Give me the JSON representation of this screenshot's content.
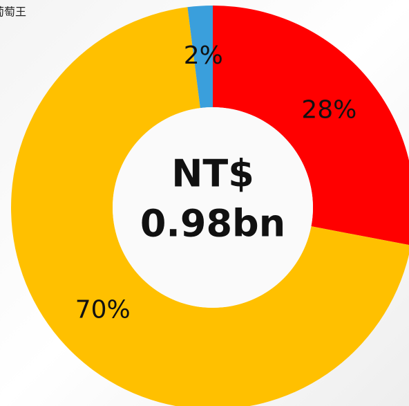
{
  "chart_data": {
    "type": "donut",
    "legend_label": "葡萄王",
    "center_label": [
      "NT$",
      "0.98bn"
    ],
    "values": [
      28,
      70,
      2
    ],
    "value_labels": [
      "28%",
      "70%",
      "2%"
    ],
    "colors": [
      "#ff0000",
      "#ffc000",
      "#3a9fdc"
    ]
  }
}
